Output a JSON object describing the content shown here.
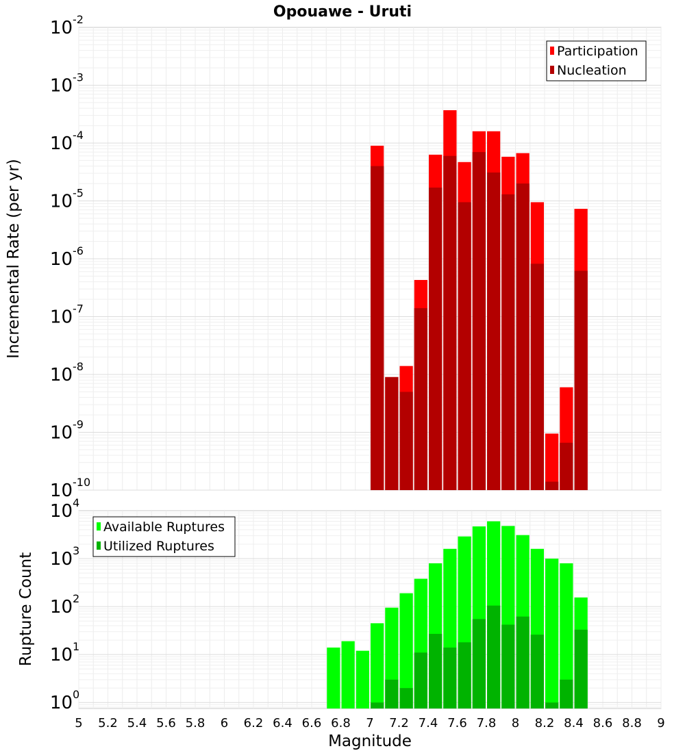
{
  "chart_title": "Opouawe - Uruti",
  "chart_data": [
    {
      "type": "bar",
      "title": "Opouawe - Uruti",
      "xlabel": "",
      "ylabel": "Incremental Rate (per yr)",
      "yscale": "log",
      "xlim": [
        5,
        9
      ],
      "ylim": [
        1e-10,
        0.01
      ],
      "grid": true,
      "legend_position": "top-right",
      "x": [
        7.05,
        7.15,
        7.25,
        7.35,
        7.45,
        7.55,
        7.65,
        7.75,
        7.85,
        7.95,
        8.05,
        8.15,
        8.25,
        8.35,
        8.45
      ],
      "series": [
        {
          "name": "Participation",
          "color": "#ff0000",
          "values": [
            9e-05,
            9e-09,
            1.4e-08,
            4.3e-07,
            6.3e-05,
            0.00037,
            4.7e-05,
            0.00016,
            0.00016,
            5.8e-05,
            6.7e-05,
            9.5e-06,
            9.5e-10,
            6e-09,
            7.3e-06
          ]
        },
        {
          "name": "Nucleation",
          "color": "#b30000",
          "values": [
            4e-05,
            9e-09,
            5e-09,
            1.4e-07,
            1.7e-05,
            6e-05,
            9.5e-06,
            7e-05,
            3.1e-05,
            1.3e-05,
            2e-05,
            8.2e-07,
            1.4e-10,
            6.6e-10,
            6.2e-07
          ]
        }
      ],
      "y_ticks": [
        {
          "base": "10",
          "exp": "-10"
        },
        {
          "base": "10",
          "exp": "-9"
        },
        {
          "base": "10",
          "exp": "-8"
        },
        {
          "base": "10",
          "exp": "-7"
        },
        {
          "base": "10",
          "exp": "-6"
        },
        {
          "base": "10",
          "exp": "-5"
        },
        {
          "base": "10",
          "exp": "-4"
        },
        {
          "base": "10",
          "exp": "-3"
        },
        {
          "base": "10",
          "exp": "-2"
        }
      ]
    },
    {
      "type": "bar",
      "title": "",
      "xlabel": "Magnitude",
      "ylabel": "Rupture Count",
      "yscale": "log",
      "xlim": [
        5,
        9
      ],
      "ylim": [
        0.75,
        10000
      ],
      "grid": true,
      "legend_position": "top-left",
      "x": [
        6.75,
        6.85,
        6.95,
        7.05,
        7.15,
        7.25,
        7.35,
        7.45,
        7.55,
        7.65,
        7.75,
        7.85,
        7.95,
        8.05,
        8.15,
        8.25,
        8.35,
        8.45
      ],
      "x_ticks": [
        "5",
        "5.2",
        "5.4",
        "5.6",
        "5.8",
        "6",
        "6.2",
        "6.4",
        "6.6",
        "6.8",
        "7",
        "7.2",
        "7.4",
        "7.6",
        "7.8",
        "8",
        "8.2",
        "8.4",
        "8.6",
        "8.8",
        "9"
      ],
      "series": [
        {
          "name": "Available Ruptures",
          "color": "#00ff00",
          "values": [
            14,
            19,
            12,
            45,
            95,
            190,
            380,
            800,
            1600,
            2900,
            4700,
            6000,
            4800,
            3100,
            1600,
            1000,
            800,
            155
          ]
        },
        {
          "name": "Utilized Ruptures",
          "color": "#00b300",
          "values": [
            null,
            null,
            null,
            1,
            3,
            2,
            11,
            27,
            14,
            18,
            55,
            105,
            42,
            62,
            26,
            1,
            3,
            33
          ]
        }
      ],
      "y_ticks": [
        {
          "base": "10",
          "exp": "0"
        },
        {
          "base": "10",
          "exp": "1"
        },
        {
          "base": "10",
          "exp": "2"
        },
        {
          "base": "10",
          "exp": "3"
        },
        {
          "base": "10",
          "exp": "4"
        }
      ]
    }
  ]
}
